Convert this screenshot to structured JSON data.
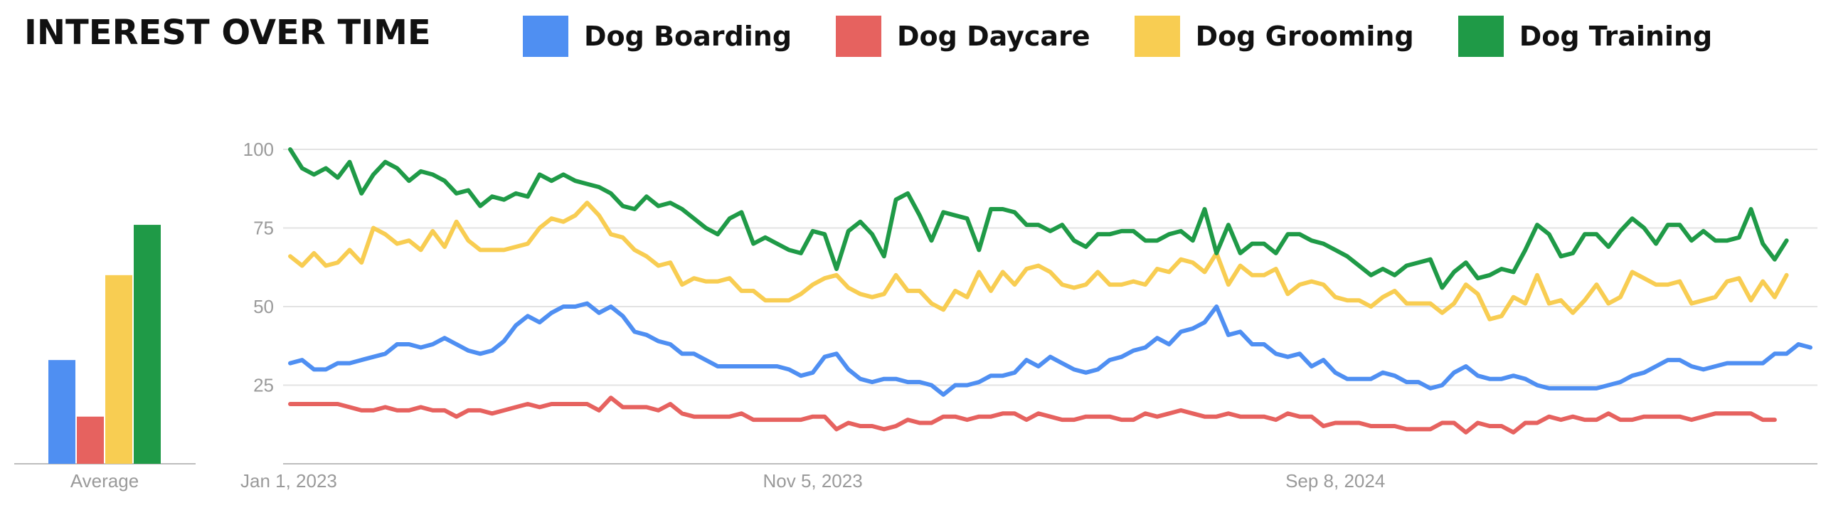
{
  "page_title": "INTEREST OVER TIME",
  "colors": {
    "Dog Boarding": "#4f8ff2",
    "Dog Daycare": "#e6625f",
    "Dog Grooming": "#f8cd52",
    "Dog Training": "#1f9a47",
    "grid": "#e3e3e3",
    "axis": "#bdbdbd"
  },
  "legend": [
    {
      "label": "Dog Boarding",
      "color": "#4f8ff2"
    },
    {
      "label": "Dog Daycare",
      "color": "#e6625f"
    },
    {
      "label": "Dog Grooming",
      "color": "#f8cd52"
    },
    {
      "label": "Dog Training",
      "color": "#1f9a47"
    }
  ],
  "chart_data": [
    {
      "type": "bar",
      "categories": [
        "Average"
      ],
      "series": [
        {
          "name": "Dog Boarding",
          "values": [
            33
          ]
        },
        {
          "name": "Dog Daycare",
          "values": [
            15
          ]
        },
        {
          "name": "Dog Grooming",
          "values": [
            60
          ]
        },
        {
          "name": "Dog Training",
          "values": [
            76
          ]
        }
      ],
      "ylim": [
        0,
        100
      ]
    },
    {
      "type": "line",
      "x_start": "2023-01-01",
      "x_interval": "weekly",
      "x_tick_labels": [
        "Jan 1, 2023",
        "Nov 5, 2023",
        "Sep 8, 2024"
      ],
      "y_ticks": [
        25,
        50,
        75,
        100
      ],
      "ylim": [
        0,
        100
      ],
      "grid": true,
      "series": [
        {
          "name": "Dog Boarding",
          "values": [
            32,
            33,
            30,
            30,
            32,
            32,
            33,
            34,
            35,
            38,
            38,
            37,
            38,
            40,
            38,
            36,
            35,
            36,
            39,
            44,
            47,
            45,
            48,
            50,
            50,
            51,
            48,
            50,
            47,
            42,
            41,
            39,
            38,
            35,
            35,
            33,
            31,
            31,
            31,
            31,
            31,
            31,
            30,
            28,
            29,
            34,
            35,
            30,
            27,
            26,
            27,
            27,
            26,
            26,
            25,
            22,
            25,
            25,
            26,
            28,
            28,
            29,
            33,
            31,
            34,
            32,
            30,
            29,
            30,
            33,
            34,
            36,
            37,
            40,
            38,
            42,
            43,
            45,
            50,
            41,
            42,
            38,
            38,
            35,
            34,
            35,
            31,
            33,
            29,
            27,
            27,
            27,
            29,
            28,
            26,
            26,
            24,
            25,
            29,
            31,
            28,
            27,
            27,
            28,
            27,
            25,
            24,
            24,
            24,
            24,
            24,
            25,
            26,
            28,
            29,
            31,
            33,
            33,
            31,
            30,
            31,
            32,
            32,
            32,
            32,
            35,
            35,
            38,
            37
          ]
        },
        {
          "name": "Dog Daycare",
          "values": [
            19,
            19,
            19,
            19,
            19,
            18,
            17,
            17,
            18,
            17,
            17,
            18,
            17,
            17,
            15,
            17,
            17,
            16,
            17,
            18,
            19,
            18,
            19,
            19,
            19,
            19,
            17,
            21,
            18,
            18,
            18,
            17,
            19,
            16,
            15,
            15,
            15,
            15,
            16,
            14,
            14,
            14,
            14,
            14,
            15,
            15,
            11,
            13,
            12,
            12,
            11,
            12,
            14,
            13,
            13,
            15,
            15,
            14,
            15,
            15,
            16,
            16,
            14,
            16,
            15,
            14,
            14,
            15,
            15,
            15,
            14,
            14,
            16,
            15,
            16,
            17,
            16,
            15,
            15,
            16,
            15,
            15,
            15,
            14,
            16,
            15,
            15,
            12,
            13,
            13,
            13,
            12,
            12,
            12,
            11,
            11,
            11,
            13,
            13,
            10,
            13,
            12,
            12,
            10,
            13,
            13,
            15,
            14,
            15,
            14,
            14,
            16,
            14,
            14,
            15,
            15,
            15,
            15,
            14,
            15,
            16,
            16,
            16,
            16,
            14,
            14
          ]
        },
        {
          "name": "Dog Grooming",
          "values": [
            66,
            63,
            67,
            63,
            64,
            68,
            64,
            75,
            73,
            70,
            71,
            68,
            74,
            69,
            77,
            71,
            68,
            68,
            68,
            69,
            70,
            75,
            78,
            77,
            79,
            83,
            79,
            73,
            72,
            68,
            66,
            63,
            64,
            57,
            59,
            58,
            58,
            59,
            55,
            55,
            52,
            52,
            52,
            54,
            57,
            59,
            60,
            56,
            54,
            53,
            54,
            60,
            55,
            55,
            51,
            49,
            55,
            53,
            61,
            55,
            61,
            57,
            62,
            63,
            61,
            57,
            56,
            57,
            61,
            57,
            57,
            58,
            57,
            62,
            61,
            65,
            64,
            61,
            67,
            57,
            63,
            60,
            60,
            62,
            54,
            57,
            58,
            57,
            53,
            52,
            52,
            50,
            53,
            55,
            51,
            51,
            51,
            48,
            51,
            57,
            54,
            46,
            47,
            53,
            51,
            60,
            51,
            52,
            48,
            52,
            57,
            51,
            53,
            61,
            59,
            57,
            57,
            58,
            51,
            52,
            53,
            58,
            59,
            52,
            58,
            53,
            60
          ]
        },
        {
          "name": "Dog Training",
          "values": [
            100,
            94,
            92,
            94,
            91,
            96,
            86,
            92,
            96,
            94,
            90,
            93,
            92,
            90,
            86,
            87,
            82,
            85,
            84,
            86,
            85,
            92,
            90,
            92,
            90,
            89,
            88,
            86,
            82,
            81,
            85,
            82,
            83,
            81,
            78,
            75,
            73,
            78,
            80,
            70,
            72,
            70,
            68,
            67,
            74,
            73,
            62,
            74,
            77,
            73,
            66,
            84,
            86,
            79,
            71,
            80,
            79,
            78,
            68,
            81,
            81,
            80,
            76,
            76,
            74,
            76,
            71,
            69,
            73,
            73,
            74,
            74,
            71,
            71,
            73,
            74,
            71,
            81,
            67,
            76,
            67,
            70,
            70,
            67,
            73,
            73,
            71,
            70,
            68,
            66,
            63,
            60,
            62,
            60,
            63,
            64,
            65,
            56,
            61,
            64,
            59,
            60,
            62,
            61,
            68,
            76,
            73,
            66,
            67,
            73,
            73,
            69,
            74,
            78,
            75,
            70,
            76,
            76,
            71,
            74,
            71,
            71,
            72,
            81,
            70,
            65,
            71
          ]
        }
      ]
    }
  ]
}
